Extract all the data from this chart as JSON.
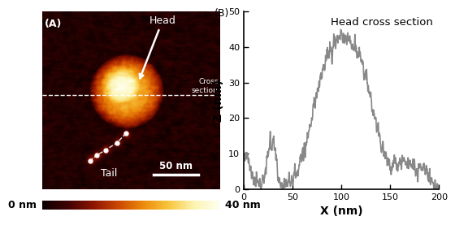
{
  "title_B": "Head cross section",
  "xlabel": "X (nm)",
  "ylabel": "Z (nm)",
  "xlim": [
    0,
    200
  ],
  "ylim": [
    0,
    50
  ],
  "xticks": [
    0,
    50,
    100,
    150,
    200
  ],
  "yticks": [
    0,
    10,
    20,
    30,
    40,
    50
  ],
  "line_color": "#888888",
  "line_width": 1.2,
  "colorbar_label_left": "0 nm",
  "colorbar_label_right": "40 nm",
  "label_A": "(A)",
  "label_B": "(B)",
  "head_label": "Head",
  "tail_label": "Tail",
  "cross_section_label": "Cross\nsection",
  "scale_bar_label": "50 nm",
  "bg_color": "#ffffff",
  "panel_border_color": "#000000"
}
